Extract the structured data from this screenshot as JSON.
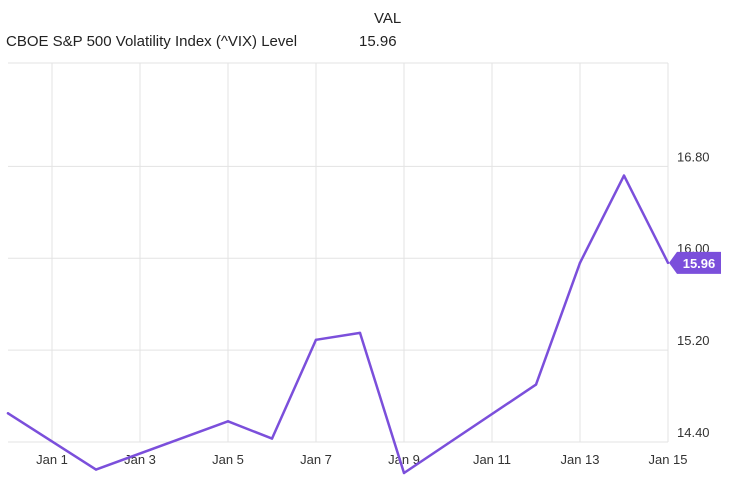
{
  "legend": {
    "header": "VAL",
    "series_name": "CBOE S&P 500 Volatility Index (^VIX) Level",
    "series_value": "15.96"
  },
  "colors": {
    "line": "#7b4fdb",
    "grid": "#e3e3e3",
    "badge": "#7b4fdb"
  },
  "chart_data": {
    "type": "line",
    "title": "",
    "xlabel": "",
    "ylabel": "",
    "x": [
      "Dec 31",
      "Jan 2",
      "Jan 5",
      "Jan 6",
      "Jan 7",
      "Jan 8",
      "Jan 9",
      "Jan 12",
      "Jan 13",
      "Jan 14",
      "Jan 15"
    ],
    "x_numeric": [
      0,
      2,
      5,
      6,
      7,
      8,
      9,
      12,
      13,
      14,
      15
    ],
    "series": [
      {
        "name": "CBOE S&P 500 Volatility Index (^VIX) Level",
        "values": [
          14.65,
          14.16,
          14.58,
          14.43,
          15.29,
          15.35,
          14.13,
          14.9,
          15.96,
          16.72,
          15.96
        ]
      }
    ],
    "xlim": [
      0,
      15
    ],
    "ylim": [
      14.4,
      17.7
    ],
    "x_ticks": [
      {
        "pos": 1,
        "label": "Jan 1"
      },
      {
        "pos": 3,
        "label": "Jan 3"
      },
      {
        "pos": 5,
        "label": "Jan 5"
      },
      {
        "pos": 7,
        "label": "Jan 7"
      },
      {
        "pos": 9,
        "label": "Jan 9"
      },
      {
        "pos": 11,
        "label": "Jan 11"
      },
      {
        "pos": 13,
        "label": "Jan 13"
      },
      {
        "pos": 15,
        "label": "Jan 15"
      }
    ],
    "y_ticks": [
      {
        "value": 14.4,
        "label": "14.40"
      },
      {
        "value": 15.2,
        "label": "15.20"
      },
      {
        "value": 16.0,
        "label": "16.00"
      },
      {
        "value": 16.8,
        "label": "16.80"
      }
    ],
    "last_value_label": "15.96",
    "grid": true,
    "legend_position": "top-left"
  }
}
